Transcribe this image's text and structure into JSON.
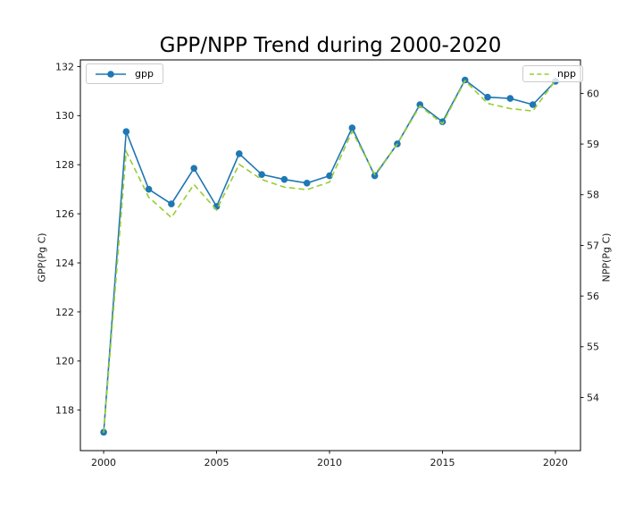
{
  "figure": {
    "background": "#ffffff"
  },
  "chart_data": {
    "type": "line",
    "title": "GPP/NPP Trend during 2000-2020",
    "x": [
      2000,
      2001,
      2002,
      2003,
      2004,
      2005,
      2006,
      2007,
      2008,
      2009,
      2010,
      2011,
      2012,
      2013,
      2014,
      2015,
      2016,
      2017,
      2018,
      2019,
      2020
    ],
    "series": [
      {
        "name": "gpp",
        "axis": "left",
        "color": "#1f77b4",
        "line_style": "solid",
        "marker": "circle",
        "values": [
          117.1,
          129.35,
          127.0,
          126.4,
          127.85,
          126.3,
          128.45,
          127.6,
          127.4,
          127.25,
          127.55,
          129.5,
          127.55,
          128.85,
          130.45,
          129.75,
          131.45,
          130.75,
          130.7,
          130.45,
          131.4
        ]
      },
      {
        "name": "npp",
        "axis": "right",
        "color": "#9acd32",
        "line_style": "dashed",
        "marker": "none",
        "values": [
          53.3,
          58.85,
          57.95,
          57.55,
          58.2,
          57.7,
          58.6,
          58.3,
          58.15,
          58.1,
          58.25,
          59.25,
          58.4,
          59.0,
          59.75,
          59.4,
          60.25,
          59.8,
          59.7,
          59.65,
          60.25
        ]
      }
    ],
    "x_axis": {
      "tick_labels": [
        "2000",
        "2005",
        "2010",
        "2015",
        "2020"
      ],
      "tick_values": [
        2000,
        2005,
        2010,
        2015,
        2020
      ],
      "range": [
        1998.97,
        2021.11
      ]
    },
    "left_axis": {
      "label": "GPP(Pg C)",
      "tick_labels": [
        "118",
        "120",
        "122",
        "124",
        "126",
        "128",
        "130",
        "132"
      ],
      "tick_values": [
        118,
        120,
        122,
        124,
        126,
        128,
        130,
        132
      ],
      "range": [
        116.35,
        132.27
      ]
    },
    "right_axis": {
      "label": "NPP(Pg C)",
      "tick_labels": [
        "54",
        "55",
        "56",
        "57",
        "58",
        "59",
        "60"
      ],
      "tick_values": [
        54,
        55,
        56,
        57,
        58,
        59,
        60
      ],
      "range": [
        52.95,
        60.66
      ]
    },
    "legend": {
      "grid": false,
      "positions": [
        "upper-left",
        "upper-right"
      ]
    }
  }
}
